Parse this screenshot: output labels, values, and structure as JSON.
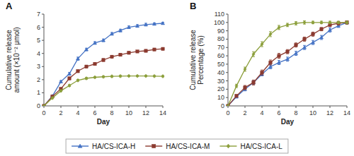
{
  "chart_data": [
    {
      "type": "line",
      "title": "A",
      "x_label": "Day",
      "y_label": "Cumulative release\namount (×10⁻² μmol)",
      "x": [
        0,
        1,
        2,
        3,
        4,
        5,
        6,
        7,
        8,
        9,
        10,
        11,
        12,
        13,
        14
      ],
      "series": [
        {
          "name": "HA/CS-ICA-H",
          "color": "#4472C4",
          "marker": "triangle",
          "values": [
            0,
            0.75,
            1.85,
            2.45,
            3.6,
            4.3,
            4.8,
            5.0,
            5.5,
            5.75,
            6.0,
            6.1,
            6.2,
            6.25,
            6.3
          ],
          "errors": [
            0,
            0.05,
            0.08,
            0.1,
            0.12,
            0.1,
            0.1,
            0.1,
            0.1,
            0.1,
            0.1,
            0.1,
            0.1,
            0.08,
            0.08
          ]
        },
        {
          "name": "HA/CS-ICA-M",
          "color": "#8B3A2F",
          "marker": "square",
          "values": [
            0,
            0.72,
            1.3,
            2.1,
            2.65,
            3.0,
            3.2,
            3.5,
            3.75,
            3.9,
            4.05,
            4.15,
            4.2,
            4.3,
            4.35
          ],
          "errors": [
            0,
            0.05,
            0.08,
            0.1,
            0.1,
            0.1,
            0.1,
            0.1,
            0.1,
            0.1,
            0.1,
            0.08,
            0.08,
            0.08,
            0.08
          ]
        },
        {
          "name": "HA/CS-ICA-L",
          "color": "#8B9E3A",
          "marker": "diamond",
          "values": [
            0,
            0.6,
            1.15,
            1.55,
            1.95,
            2.1,
            2.18,
            2.22,
            2.25,
            2.27,
            2.28,
            2.28,
            2.28,
            2.27,
            2.26
          ],
          "errors": [
            0,
            0.05,
            0.06,
            0.07,
            0.07,
            0.07,
            0.06,
            0.06,
            0.06,
            0.06,
            0.05,
            0.05,
            0.05,
            0.05,
            0.05
          ]
        }
      ],
      "xlim": [
        0,
        14
      ],
      "xticks": [
        0,
        2,
        4,
        6,
        8,
        10,
        12,
        14
      ],
      "ylim": [
        0,
        7
      ],
      "yticks": [
        0,
        1,
        2,
        3,
        4,
        5,
        6,
        7
      ],
      "grid": false,
      "legend": "bottom"
    },
    {
      "type": "line",
      "title": "B",
      "x_label": "Day",
      "y_label": "Cumulative release\nPercentage (%)",
      "x": [
        0,
        1,
        2,
        3,
        4,
        5,
        6,
        7,
        8,
        9,
        10,
        11,
        12,
        13,
        14
      ],
      "series": [
        {
          "name": "HA/CS-ICA-H",
          "color": "#4472C4",
          "marker": "triangle",
          "values": [
            0,
            11,
            20,
            28,
            38,
            47,
            52,
            56,
            63,
            70,
            76,
            82,
            91,
            96,
            100
          ],
          "errors": [
            0,
            1.5,
            2,
            2,
            2,
            2.5,
            2.5,
            2.5,
            2.5,
            2.5,
            2.5,
            2.5,
            2.5,
            2,
            2
          ]
        },
        {
          "name": "HA/CS-ICA-M",
          "color": "#8B3A2F",
          "marker": "square",
          "values": [
            0,
            12,
            22,
            28,
            40,
            52,
            60,
            65,
            73,
            80,
            86,
            92,
            97,
            99,
            100
          ],
          "errors": [
            0,
            1.5,
            2.5,
            3,
            3,
            3,
            3,
            2.5,
            2.5,
            2.5,
            2.5,
            2,
            2,
            2,
            2
          ]
        },
        {
          "name": "HA/CS-ICA-L",
          "color": "#8B9E3A",
          "marker": "diamond",
          "values": [
            0,
            24,
            44,
            62,
            74,
            86,
            94,
            97,
            99,
            100,
            100,
            100,
            100,
            100,
            100
          ],
          "errors": [
            0,
            2,
            2.5,
            3,
            3,
            3,
            2.5,
            2,
            2,
            2,
            1.5,
            1.5,
            1.5,
            1.5,
            1.5
          ]
        }
      ],
      "xlim": [
        0,
        14
      ],
      "xticks": [
        0,
        2,
        4,
        6,
        8,
        10,
        12,
        14
      ],
      "ylim": [
        0,
        110
      ],
      "yticks": [
        0,
        10,
        20,
        30,
        40,
        50,
        60,
        70,
        80,
        90,
        100,
        110
      ],
      "grid": false
    }
  ]
}
